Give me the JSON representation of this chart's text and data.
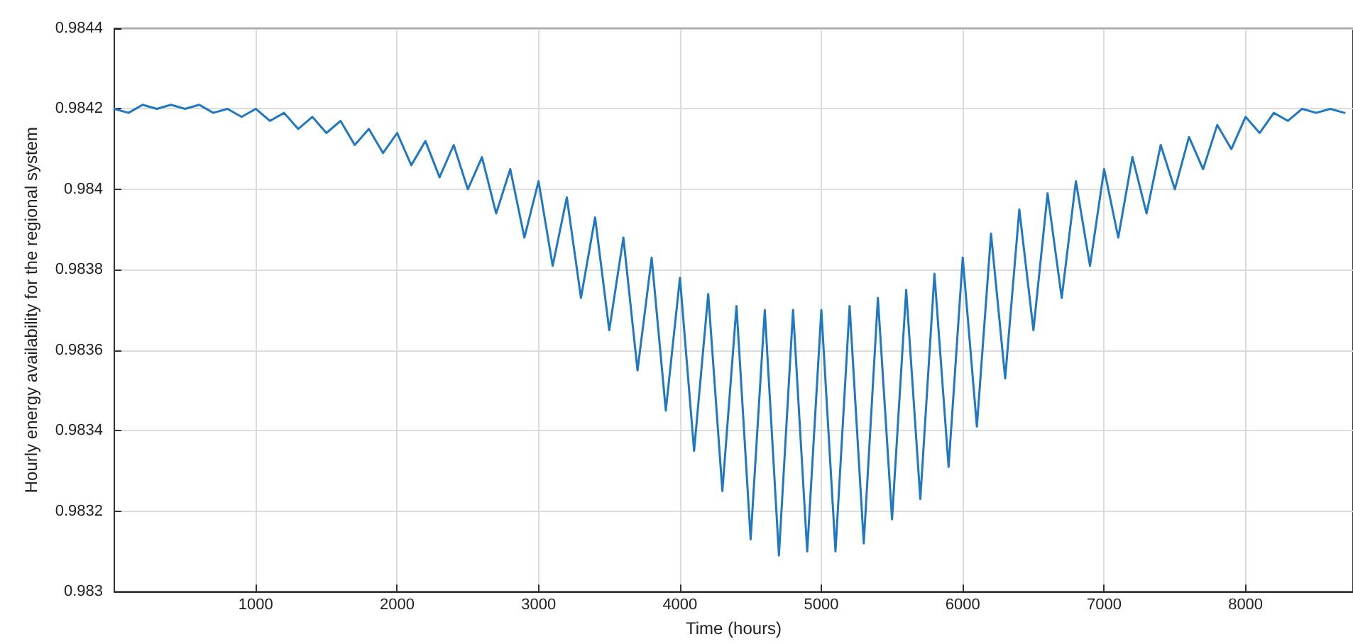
{
  "chart_data": {
    "type": "line",
    "xlabel": "Time (hours)",
    "ylabel": "Hourly energy availability for the regional system",
    "xlim": [
      0,
      8760
    ],
    "xticks": [
      1000,
      2000,
      3000,
      4000,
      5000,
      6000,
      7000,
      8000
    ],
    "ylim": [
      0.983,
      0.9844
    ],
    "yticks": [
      0.983,
      0.9832,
      0.9834,
      0.9836,
      0.9838,
      0.984,
      0.9842,
      0.9844
    ],
    "grid": true,
    "marker": "none",
    "line_style": "solid",
    "x": [
      0,
      100,
      200,
      300,
      400,
      500,
      600,
      700,
      800,
      900,
      1000,
      1100,
      1200,
      1300,
      1400,
      1500,
      1600,
      1700,
      1800,
      1900,
      2000,
      2100,
      2200,
      2300,
      2400,
      2500,
      2600,
      2700,
      2800,
      2900,
      3000,
      3100,
      3200,
      3300,
      3400,
      3500,
      3600,
      3700,
      3800,
      3900,
      4000,
      4100,
      4200,
      4300,
      4400,
      4500,
      4600,
      4700,
      4800,
      4900,
      5000,
      5100,
      5200,
      5300,
      5400,
      5500,
      5600,
      5700,
      5800,
      5900,
      6000,
      6100,
      6200,
      6300,
      6400,
      6500,
      6600,
      6700,
      6800,
      6900,
      7000,
      7100,
      7200,
      7300,
      7400,
      7500,
      7600,
      7700,
      7800,
      7900,
      8000,
      8100,
      8200,
      8300,
      8400,
      8500,
      8600,
      8700
    ],
    "series": [
      {
        "color": "#1f78c1",
        "values": [
          0.9842,
          0.98419,
          0.98421,
          0.9842,
          0.98421,
          0.9842,
          0.98421,
          0.98419,
          0.9842,
          0.98418,
          0.9842,
          0.98417,
          0.98419,
          0.98415,
          0.98418,
          0.98414,
          0.98417,
          0.98411,
          0.98415,
          0.98409,
          0.98414,
          0.98406,
          0.98412,
          0.98403,
          0.98411,
          0.984,
          0.98408,
          0.98394,
          0.98405,
          0.98388,
          0.98402,
          0.98381,
          0.98398,
          0.98373,
          0.98393,
          0.98365,
          0.98388,
          0.98355,
          0.98383,
          0.98345,
          0.98378,
          0.98335,
          0.98374,
          0.98325,
          0.98371,
          0.98313,
          0.9837,
          0.98309,
          0.9837,
          0.9831,
          0.9837,
          0.9831,
          0.98371,
          0.98312,
          0.98373,
          0.98318,
          0.98375,
          0.98323,
          0.98379,
          0.98331,
          0.98383,
          0.98341,
          0.98389,
          0.98353,
          0.98395,
          0.98365,
          0.98399,
          0.98373,
          0.98402,
          0.98381,
          0.98405,
          0.98388,
          0.98408,
          0.98394,
          0.98411,
          0.984,
          0.98413,
          0.98405,
          0.98416,
          0.9841,
          0.98418,
          0.98414,
          0.98419,
          0.98417,
          0.9842,
          0.98419,
          0.9842,
          0.98419
        ]
      }
    ]
  }
}
